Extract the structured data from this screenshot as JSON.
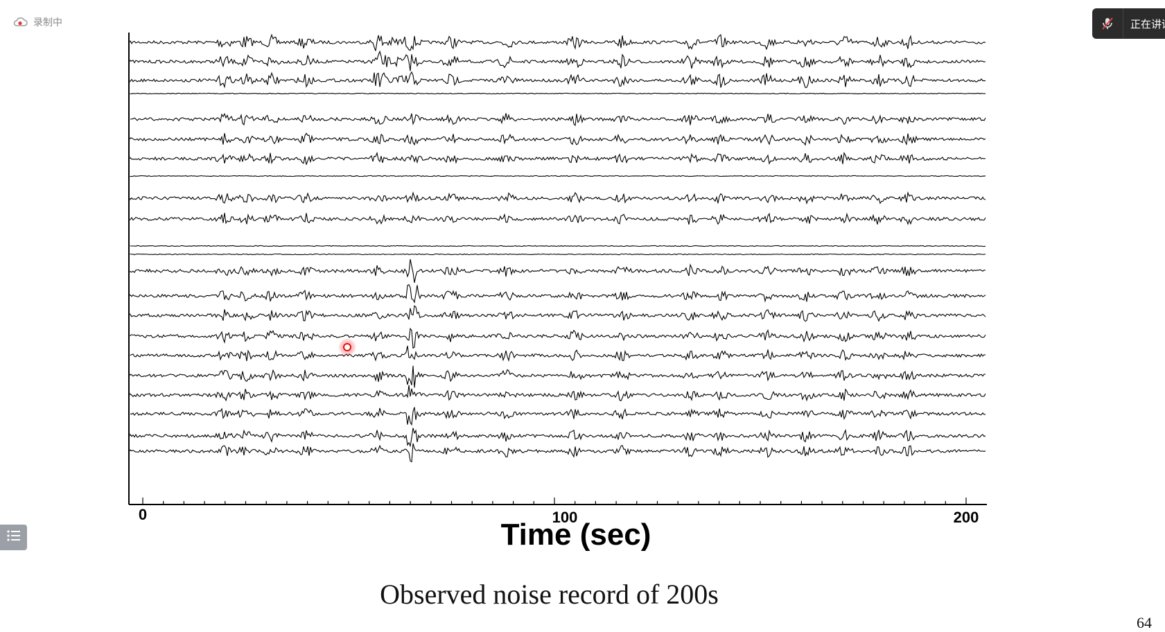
{
  "recording": {
    "label": "录制中",
    "icon": "cloud-record-icon"
  },
  "speaker": {
    "label": "正在讲话",
    "icon": "mic-muted-icon"
  },
  "side_menu": {
    "icon": "list-menu-icon"
  },
  "figure": {
    "xaxis_label": "Time (sec)",
    "xaxis_ticks": [
      "0",
      "100",
      "200"
    ],
    "trace_count": 22
  },
  "chart_data": {
    "type": "line",
    "xlabel": "Time (sec)",
    "ylabel": "",
    "xlim": [
      0,
      200
    ],
    "x_ticks": [
      0,
      100,
      200
    ],
    "series_count": 22
  },
  "caption": "Observed noise record of 200s",
  "page_number": "64"
}
